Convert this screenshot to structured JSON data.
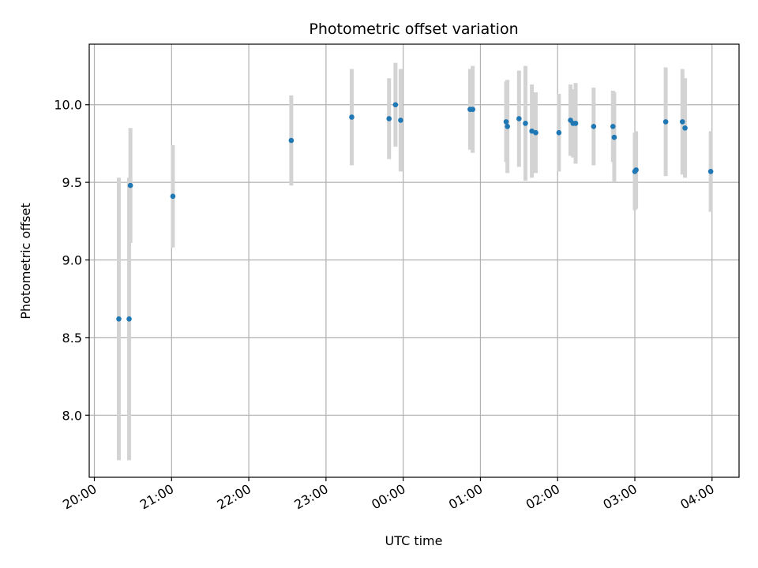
{
  "chart_data": {
    "type": "scatter",
    "title": "Photometric offset variation",
    "xlabel": "UTC time",
    "ylabel": "Photometric offset",
    "x_axis_type": "time",
    "x_range": [
      "2023-01-01T19:56",
      "2023-01-02T04:21"
    ],
    "ylim": [
      7.6,
      10.39
    ],
    "x_ticks": [
      {
        "label": "20:00",
        "value": "2023-01-01T20:00"
      },
      {
        "label": "21:00",
        "value": "2023-01-01T21:00"
      },
      {
        "label": "22:00",
        "value": "2023-01-01T22:00"
      },
      {
        "label": "23:00",
        "value": "2023-01-01T23:00"
      },
      {
        "label": "00:00",
        "value": "2023-01-02T00:00"
      },
      {
        "label": "01:00",
        "value": "2023-01-02T01:00"
      },
      {
        "label": "02:00",
        "value": "2023-01-02T02:00"
      },
      {
        "label": "03:00",
        "value": "2023-01-02T03:00"
      },
      {
        "label": "04:00",
        "value": "2023-01-02T04:00"
      }
    ],
    "y_ticks": [
      {
        "label": "8.0",
        "value": 8.0
      },
      {
        "label": "8.5",
        "value": 8.5
      },
      {
        "label": "9.0",
        "value": 9.0
      },
      {
        "label": "9.5",
        "value": 9.5
      },
      {
        "label": "10.0",
        "value": 10.0
      }
    ],
    "grid": true,
    "colors": {
      "points": "#1f77b4",
      "error_bars": "#d3d3d3",
      "grid": "#b0b0b0"
    },
    "points": [
      {
        "x": "2023-01-01T20:19",
        "y": 8.62,
        "err": 0.91
      },
      {
        "x": "2023-01-01T20:27",
        "y": 8.62,
        "err": 0.91
      },
      {
        "x": "2023-01-01T20:28",
        "y": 9.48,
        "err": 0.37
      },
      {
        "x": "2023-01-01T21:01",
        "y": 9.41,
        "err": 0.33
      },
      {
        "x": "2023-01-01T22:33",
        "y": 9.77,
        "err": 0.29
      },
      {
        "x": "2023-01-01T23:20",
        "y": 9.92,
        "err": 0.31
      },
      {
        "x": "2023-01-01T23:49",
        "y": 9.91,
        "err": 0.26
      },
      {
        "x": "2023-01-01T23:54",
        "y": 10.0,
        "err": 0.27
      },
      {
        "x": "2023-01-01T23:58",
        "y": 9.9,
        "err": 0.33
      },
      {
        "x": "2023-01-02T00:52",
        "y": 9.97,
        "err": 0.26
      },
      {
        "x": "2023-01-02T00:54",
        "y": 9.97,
        "err": 0.28
      },
      {
        "x": "2023-01-02T01:20",
        "y": 9.89,
        "err": 0.26
      },
      {
        "x": "2023-01-02T01:21",
        "y": 9.86,
        "err": 0.3
      },
      {
        "x": "2023-01-02T01:30",
        "y": 9.91,
        "err": 0.31
      },
      {
        "x": "2023-01-02T01:35",
        "y": 9.88,
        "err": 0.37
      },
      {
        "x": "2023-01-02T01:40",
        "y": 9.83,
        "err": 0.3
      },
      {
        "x": "2023-01-02T01:43",
        "y": 9.82,
        "err": 0.26
      },
      {
        "x": "2023-01-02T02:01",
        "y": 9.82,
        "err": 0.25
      },
      {
        "x": "2023-01-02T02:10",
        "y": 9.9,
        "err": 0.23
      },
      {
        "x": "2023-01-02T02:12",
        "y": 9.88,
        "err": 0.22
      },
      {
        "x": "2023-01-02T02:14",
        "y": 9.88,
        "err": 0.26
      },
      {
        "x": "2023-01-02T02:28",
        "y": 9.86,
        "err": 0.25
      },
      {
        "x": "2023-01-02T02:43",
        "y": 9.86,
        "err": 0.23
      },
      {
        "x": "2023-01-02T02:44",
        "y": 9.79,
        "err": 0.29
      },
      {
        "x": "2023-01-02T03:00",
        "y": 9.57,
        "err": 0.25
      },
      {
        "x": "2023-01-02T03:01",
        "y": 9.58,
        "err": 0.25
      },
      {
        "x": "2023-01-02T03:24",
        "y": 9.89,
        "err": 0.35
      },
      {
        "x": "2023-01-02T03:37",
        "y": 9.89,
        "err": 0.34
      },
      {
        "x": "2023-01-02T03:39",
        "y": 9.85,
        "err": 0.32
      },
      {
        "x": "2023-01-02T03:59",
        "y": 9.57,
        "err": 0.26
      }
    ]
  }
}
